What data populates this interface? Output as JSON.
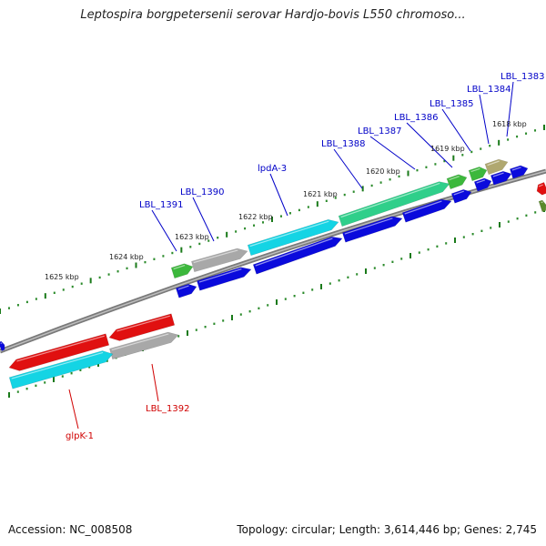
{
  "title": "Leptospira borgpetersenii serovar Hardjo-bovis L550 chromoso...",
  "footer": {
    "accession_label": "Accession: NC_008508",
    "summary": "Topology: circular; Length: 3,614,446 bp; Genes: 2,745"
  },
  "colors": {
    "backbone": "#7a7a7a",
    "tick_major": "#1a7a1a",
    "tick_minor": "#2a8a2a",
    "arrow_blue": "#0a0adc",
    "arrow_red": "#e01010",
    "arrow_cyan": "#14d4e4",
    "arrow_green": "#2fcf8a",
    "arrow_lime": "#3cb83c",
    "arrow_grey": "#a8a8a8",
    "arrow_olive": "#b0a870",
    "label_blue": "#0000c8",
    "label_red": "#d00000"
  },
  "kbp_labels": [
    "1618 kbp",
    "1619 kbp",
    "1620 kbp",
    "1621 kbp",
    "1622 kbp",
    "1623 kbp",
    "1624 kbp",
    "1625 kbp"
  ],
  "gene_labels": [
    {
      "text": "LBL_1383",
      "color": "blue"
    },
    {
      "text": "LBL_1384",
      "color": "blue"
    },
    {
      "text": "LBL_1385",
      "color": "blue"
    },
    {
      "text": "LBL_1386",
      "color": "blue"
    },
    {
      "text": "LBL_1387",
      "color": "blue"
    },
    {
      "text": "LBL_1388",
      "color": "blue"
    },
    {
      "text": "lpdA-3",
      "color": "blue"
    },
    {
      "text": "LBL_1390",
      "color": "blue"
    },
    {
      "text": "LBL_1391",
      "color": "blue"
    },
    {
      "text": "LBL_1392",
      "color": "red"
    },
    {
      "text": "glpK-1",
      "color": "red"
    }
  ]
}
